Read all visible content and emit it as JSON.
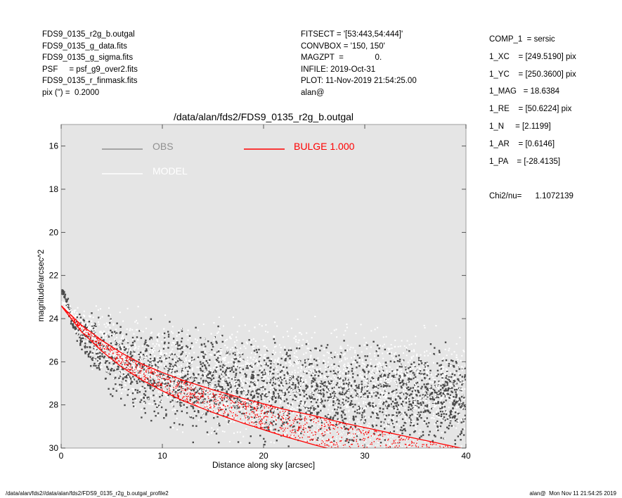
{
  "header_left": [
    "FDS9_0135_r2g_b.outgal",
    "FDS9_0135_g_data.fits",
    "FDS9_0135_g_sigma.fits",
    "PSF     = psf_g9_over2.fits",
    "FDS9_0135_r_finmask.fits",
    "pix (\") =  0.2000"
  ],
  "header_mid": [
    "FITSECT = '[53:443,54:444]'",
    "CONVBOX = '150, 150'",
    "MAGZPT  =              0.",
    "INFILE: 2019-Oct-31",
    "PLOT: 11-Nov-2019 21:54:25.00",
    "alan@"
  ],
  "params": [
    "COMP_1  = sersic",
    "1_XC    = [249.5190] pix",
    "1_YC    = [250.3600] pix",
    "1_MAG   = 18.6384",
    "1_RE    = [50.6224] pix",
    "1_N     = [2.1199]",
    "1_AR    = [0.6146]",
    "1_PA    = [-28.4135]"
  ],
  "chi2": "Chi2/nu=      1.1072139",
  "footer_left": "/data/alan/fds2//data/alan/fds2/FDS9_0135_r2g_b.outgal_profile2",
  "footer_right": "alan@  Mon Nov 11 21:54:25 2019",
  "colors": {
    "plot_bg": "#e5e5e5",
    "obs": "#4a4a4a",
    "model": "#ffffff",
    "bulge": "#ff0000"
  },
  "chart_data": {
    "type": "scatter",
    "title": "/data/alan/fds2/FDS9_0135_r2g_b.outgal",
    "xlabel": "Distance along sky [arcsec]",
    "ylabel": "magnitude/arcsec^2",
    "xlim": [
      0,
      40
    ],
    "ylim": [
      30,
      15
    ],
    "x_ticks": [
      0,
      10,
      20,
      30,
      40
    ],
    "y_ticks": [
      16,
      18,
      20,
      22,
      24,
      26,
      28,
      30
    ],
    "grid": false,
    "legend": [
      {
        "label": "OBS",
        "color": "#909090"
      },
      {
        "label": "MODEL",
        "color": "#ffffff"
      },
      {
        "label": "BULGE  1.000",
        "color": "#ff0000"
      }
    ],
    "series": [
      {
        "name": "OBS",
        "kind": "scatter",
        "x": [
          0.2,
          0.5,
          0.8,
          1.0,
          1.5,
          2,
          3,
          4,
          5,
          6,
          8,
          10,
          12,
          15,
          18,
          20,
          22,
          25,
          28,
          30,
          33,
          36,
          38,
          40
        ],
        "y": [
          22.8,
          23.2,
          23.6,
          24.0,
          24.3,
          24.7,
          25.1,
          25.5,
          25.8,
          26.0,
          26.3,
          26.6,
          26.8,
          27.0,
          27.2,
          27.3,
          27.4,
          27.5,
          27.6,
          27.6,
          27.7,
          27.7,
          27.7,
          27.7
        ],
        "scatter_mag": [
          0.1,
          0.2,
          0.3,
          0.3,
          0.4,
          0.7,
          1.0,
          1.2,
          1.4,
          1.5,
          1.5,
          1.6,
          1.6,
          1.7,
          1.7,
          1.7,
          1.7,
          1.7,
          1.7,
          1.7,
          1.7,
          1.7,
          1.7,
          1.7
        ]
      },
      {
        "name": "MODEL",
        "kind": "scatter",
        "x": [
          0.2,
          1,
          2,
          3,
          4,
          5,
          6,
          8,
          10,
          12,
          15,
          18,
          20,
          22,
          25,
          28,
          30,
          33,
          36,
          38,
          40
        ],
        "y": [
          23.3,
          23.8,
          24.3,
          24.7,
          25.1,
          25.4,
          25.7,
          26.1,
          26.4,
          26.6,
          26.8,
          26.9,
          27.0,
          27.0,
          27.1,
          27.1,
          27.2,
          27.2,
          27.2,
          27.2,
          27.2
        ],
        "scatter_mag": [
          0.1,
          0.3,
          0.6,
          0.9,
          1.1,
          1.3,
          1.4,
          1.6,
          1.7,
          1.8,
          1.9,
          2.0,
          2.0,
          2.0,
          2.0,
          2.0,
          2.0,
          2.0,
          2.0,
          2.0,
          2.0
        ]
      },
      {
        "name": "BULGE  1.000",
        "kind": "band",
        "x": [
          0,
          2,
          4,
          6,
          8,
          10,
          12,
          15,
          18,
          20,
          22,
          25,
          28,
          30,
          33,
          36,
          38,
          40
        ],
        "y_upper": [
          23.4,
          24.3,
          25.0,
          25.6,
          26.1,
          26.5,
          26.85,
          27.3,
          27.7,
          27.95,
          28.2,
          28.5,
          28.85,
          29.05,
          29.35,
          29.65,
          29.85,
          30.05
        ],
        "y_lower": [
          23.4,
          24.6,
          25.5,
          26.25,
          26.85,
          27.35,
          27.8,
          28.35,
          28.85,
          29.15,
          29.45,
          29.85,
          30.2,
          30.45,
          30.8,
          31.15,
          31.4,
          31.6
        ]
      }
    ]
  }
}
